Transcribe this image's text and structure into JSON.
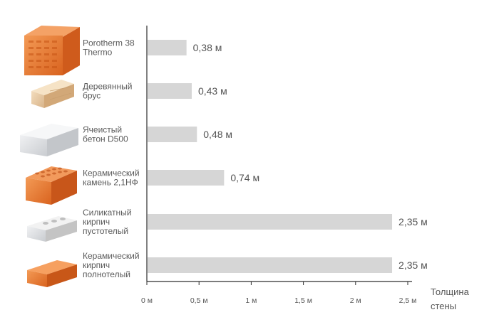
{
  "chart_data": {
    "type": "bar",
    "orientation": "horizontal",
    "categories": [
      [
        "Porotherm 38",
        "Thermo"
      ],
      [
        "Деревянный",
        "брус"
      ],
      [
        "Ячеистый",
        "бетон D500"
      ],
      [
        "Керамический",
        "камень 2,1НФ"
      ],
      [
        "Силикатный",
        "кирпич",
        "пустотелый"
      ],
      [
        "Керамический",
        "кирпич",
        "полнотелый"
      ]
    ],
    "values": [
      0.38,
      0.43,
      0.48,
      0.74,
      2.35,
      2.35
    ],
    "value_labels": [
      "0,38 м",
      "0,43 м",
      "0,48 м",
      "0,74 м",
      "2,35 м",
      "2,35 м"
    ],
    "xticks": [
      0,
      0.5,
      1,
      1.5,
      2,
      2.5
    ],
    "xtick_labels": [
      "0 м",
      "0,5 м",
      "1 м",
      "1,5 м",
      "2 м",
      "2,5 м"
    ],
    "xlim": [
      0,
      2.5
    ],
    "xlabel": [
      "Толщина",
      "стены"
    ],
    "grid": false,
    "colors": {
      "bar": "#d6d6d6",
      "axis": "#2e2e2e",
      "text": "#555555"
    },
    "icons": [
      "porotherm-block-icon",
      "wooden-beam-icon",
      "aerated-concrete-block-icon",
      "ceramic-stone-icon",
      "silicate-hollow-brick-icon",
      "ceramic-solid-brick-icon"
    ]
  }
}
